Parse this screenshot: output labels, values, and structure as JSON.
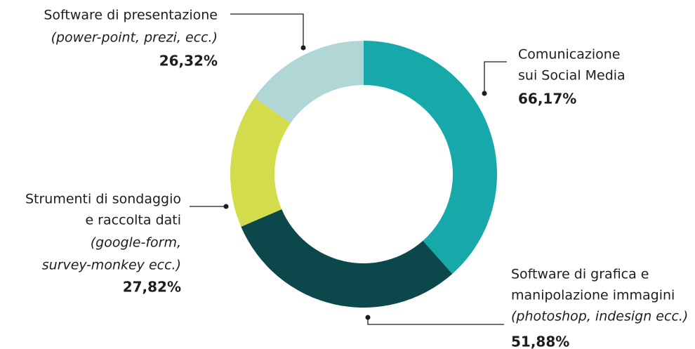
{
  "chart_data": {
    "type": "donut",
    "categories": [
      [
        "Comunicazione",
        "sui Social Media"
      ],
      [
        "Software di grafica e",
        "manipolazione immagini"
      ],
      [
        "Strumenti di sondaggio",
        "e raccolta dati"
      ],
      [
        "Software di presentazione"
      ]
    ],
    "details": [
      [],
      [
        "(photoshop, indesign ecc.)"
      ],
      [
        "(google-form,",
        "survey-monkey ecc.)"
      ],
      [
        "(power-point, prezi, ecc.)"
      ]
    ],
    "values": [
      66.17,
      51.88,
      27.82,
      26.32
    ],
    "value_labels": [
      "66,17%",
      "51,88%",
      "27,82%",
      "26,32%"
    ],
    "colors": [
      "#17a9aa",
      "#0c474c",
      "#d3dc4a",
      "#b1d6d6"
    ]
  }
}
